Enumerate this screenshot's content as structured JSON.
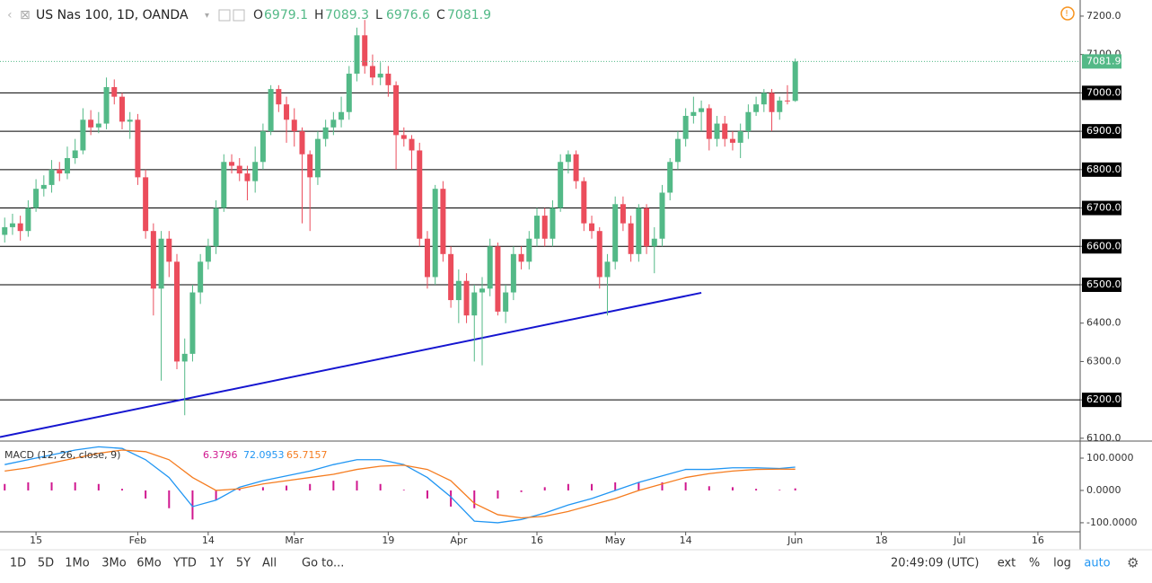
{
  "chart_data": {
    "type": "candlestick",
    "title": "US Nas 100, 1D, OANDA",
    "ohlc_labels": [
      "O",
      "H",
      "L",
      "C"
    ],
    "up_color": "#53b987",
    "down_color": "#eb4d5c",
    "x": [
      -4,
      -3,
      -2,
      -1,
      0,
      1,
      2,
      3,
      4,
      5,
      6,
      7,
      8,
      9,
      10,
      11,
      12,
      13,
      14,
      15,
      16,
      17,
      18,
      19,
      20,
      21,
      22,
      23,
      24,
      25,
      26,
      27,
      28,
      29,
      30,
      31,
      32,
      33,
      34,
      35,
      36,
      37,
      38,
      39,
      40,
      41,
      42,
      43,
      44,
      45,
      46,
      47,
      48,
      49,
      50,
      51,
      52,
      53,
      54,
      55,
      56,
      57,
      58,
      59,
      60,
      61,
      62,
      63,
      64,
      65,
      66,
      67,
      68,
      69,
      70,
      71,
      72,
      73,
      74,
      75,
      76,
      77,
      78,
      79,
      80,
      81,
      82,
      83,
      84,
      85,
      86,
      87,
      88,
      89,
      90,
      91,
      92,
      93,
      94,
      95,
      96,
      97
    ],
    "ohlc": [
      [
        6630,
        6675,
        6610,
        6650
      ],
      [
        6650,
        6685,
        6630,
        6660
      ],
      [
        6660,
        6680,
        6615,
        6640
      ],
      [
        6640,
        6720,
        6625,
        6700
      ],
      [
        6700,
        6775,
        6690,
        6750
      ],
      [
        6750,
        6785,
        6730,
        6760
      ],
      [
        6760,
        6825,
        6740,
        6800
      ],
      [
        6800,
        6820,
        6770,
        6790
      ],
      [
        6790,
        6860,
        6775,
        6830
      ],
      [
        6830,
        6880,
        6815,
        6850
      ],
      [
        6850,
        6960,
        6840,
        6930
      ],
      [
        6930,
        6955,
        6890,
        6910
      ],
      [
        6910,
        6950,
        6895,
        6920
      ],
      [
        6920,
        7040,
        6905,
        7015
      ],
      [
        7015,
        7035,
        6970,
        6990
      ],
      [
        6990,
        7000,
        6905,
        6925
      ],
      [
        6925,
        6950,
        6880,
        6930
      ],
      [
        6930,
        6945,
        6760,
        6780
      ],
      [
        6780,
        6800,
        6620,
        6640
      ],
      [
        6640,
        6660,
        6420,
        6490
      ],
      [
        6490,
        6640,
        6250,
        6620
      ],
      [
        6620,
        6640,
        6520,
        6560
      ],
      [
        6560,
        6580,
        6280,
        6300
      ],
      [
        6300,
        6360,
        6160,
        6320
      ],
      [
        6320,
        6500,
        6300,
        6480
      ],
      [
        6480,
        6580,
        6450,
        6560
      ],
      [
        6560,
        6620,
        6540,
        6600
      ],
      [
        6600,
        6720,
        6580,
        6700
      ],
      [
        6700,
        6840,
        6690,
        6820
      ],
      [
        6820,
        6840,
        6790,
        6810
      ],
      [
        6810,
        6830,
        6770,
        6790
      ],
      [
        6790,
        6810,
        6720,
        6770
      ],
      [
        6770,
        6860,
        6740,
        6820
      ],
      [
        6820,
        6920,
        6800,
        6900
      ],
      [
        6900,
        7020,
        6890,
        7010
      ],
      [
        7010,
        7020,
        6950,
        6970
      ],
      [
        6970,
        6990,
        6870,
        6930
      ],
      [
        6930,
        6960,
        6860,
        6900
      ],
      [
        6900,
        6910,
        6660,
        6840
      ],
      [
        6840,
        6850,
        6640,
        6780
      ],
      [
        6780,
        6900,
        6760,
        6880
      ],
      [
        6880,
        6930,
        6860,
        6910
      ],
      [
        6910,
        6950,
        6890,
        6930
      ],
      [
        6930,
        6990,
        6910,
        6950
      ],
      [
        6950,
        7070,
        6930,
        7050
      ],
      [
        7050,
        7170,
        7030,
        7150
      ],
      [
        7150,
        7190,
        7050,
        7070
      ],
      [
        7070,
        7100,
        7020,
        7040
      ],
      [
        7040,
        7080,
        7020,
        7050
      ],
      [
        7050,
        7070,
        6990,
        7020
      ],
      [
        7020,
        7030,
        6800,
        6890
      ],
      [
        6890,
        6910,
        6860,
        6880
      ],
      [
        6880,
        6890,
        6800,
        6850
      ],
      [
        6850,
        6870,
        6600,
        6620
      ],
      [
        6620,
        6640,
        6490,
        6520
      ],
      [
        6520,
        6760,
        6500,
        6750
      ],
      [
        6750,
        6770,
        6560,
        6580
      ],
      [
        6580,
        6600,
        6440,
        6460
      ],
      [
        6460,
        6540,
        6400,
        6510
      ],
      [
        6510,
        6530,
        6400,
        6420
      ],
      [
        6420,
        6500,
        6300,
        6480
      ],
      [
        6480,
        6520,
        6290,
        6490
      ],
      [
        6490,
        6620,
        6470,
        6600
      ],
      [
        6600,
        6610,
        6420,
        6430
      ],
      [
        6430,
        6500,
        6400,
        6480
      ],
      [
        6480,
        6600,
        6460,
        6580
      ],
      [
        6580,
        6600,
        6540,
        6560
      ],
      [
        6560,
        6640,
        6540,
        6620
      ],
      [
        6620,
        6700,
        6600,
        6680
      ],
      [
        6680,
        6700,
        6600,
        6620
      ],
      [
        6620,
        6720,
        6600,
        6700
      ],
      [
        6700,
        6840,
        6690,
        6820
      ],
      [
        6820,
        6850,
        6790,
        6840
      ],
      [
        6840,
        6850,
        6750,
        6770
      ],
      [
        6770,
        6780,
        6640,
        6660
      ],
      [
        6660,
        6680,
        6620,
        6640
      ],
      [
        6640,
        6650,
        6490,
        6520
      ],
      [
        6520,
        6580,
        6420,
        6560
      ],
      [
        6560,
        6730,
        6540,
        6710
      ],
      [
        6710,
        6730,
        6640,
        6660
      ],
      [
        6660,
        6680,
        6560,
        6580
      ],
      [
        6580,
        6710,
        6560,
        6700
      ],
      [
        6700,
        6710,
        6580,
        6600
      ],
      [
        6600,
        6650,
        6530,
        6620
      ],
      [
        6620,
        6760,
        6600,
        6740
      ],
      [
        6740,
        6830,
        6720,
        6820
      ],
      [
        6820,
        6900,
        6800,
        6880
      ],
      [
        6880,
        6960,
        6860,
        6940
      ],
      [
        6940,
        6990,
        6920,
        6950
      ],
      [
        6950,
        6980,
        6900,
        6960
      ],
      [
        6960,
        6970,
        6850,
        6880
      ],
      [
        6880,
        6940,
        6860,
        6920
      ],
      [
        6920,
        6940,
        6860,
        6880
      ],
      [
        6880,
        6900,
        6850,
        6870
      ],
      [
        6870,
        6920,
        6830,
        6900
      ],
      [
        6900,
        6970,
        6880,
        6950
      ],
      [
        6950,
        6990,
        6940,
        6970
      ],
      [
        6970,
        7010,
        6950,
        7000
      ],
      [
        7000,
        7010,
        6900,
        6950
      ],
      [
        6950,
        6990,
        6930,
        6980
      ],
      [
        6980,
        7020,
        6970,
        6979.1
      ],
      [
        6979.1,
        7089.3,
        6976.6,
        7081.9
      ]
    ],
    "xlim": [
      -4.6,
      133.4
    ],
    "xticks": [
      {
        "value": 0,
        "label": "15"
      },
      {
        "value": 13,
        "label": "Feb"
      },
      {
        "value": 22,
        "label": "14"
      },
      {
        "value": 33,
        "label": "Mar"
      },
      {
        "value": 45,
        "label": "19"
      },
      {
        "value": 54,
        "label": "Apr"
      },
      {
        "value": 64,
        "label": "16"
      },
      {
        "value": 74,
        "label": "May"
      },
      {
        "value": 83,
        "label": "14"
      },
      {
        "value": 97,
        "label": "Jun"
      },
      {
        "value": 108,
        "label": "18"
      },
      {
        "value": 118,
        "label": "Jul"
      },
      {
        "value": 128,
        "label": "16"
      }
    ],
    "ylim": [
      6095,
      7242
    ],
    "yticks": [
      {
        "value": 6100,
        "label": "6100.0"
      },
      {
        "value": 6200,
        "label": "6200.0"
      },
      {
        "value": 6300,
        "label": "6300.0"
      },
      {
        "value": 6400,
        "label": "6400.0"
      },
      {
        "value": 6500,
        "label": "6500.0"
      },
      {
        "value": 6600,
        "label": "6600.0"
      },
      {
        "value": 6700,
        "label": "6700.0"
      },
      {
        "value": 6800,
        "label": "6800.0"
      },
      {
        "value": 6900,
        "label": "6900.0"
      },
      {
        "value": 7000,
        "label": "7000.0"
      },
      {
        "value": 7100,
        "label": "7100.0"
      },
      {
        "value": 7200,
        "label": "7200.0"
      }
    ],
    "grid": false,
    "levels": [
      6200,
      6500,
      6600,
      6700,
      6800,
      6900,
      7000
    ],
    "trendline": {
      "x": [
        -4.6,
        85
      ],
      "y": [
        6103,
        6479
      ],
      "color": "#1515d0"
    },
    "macd": {
      "title": "MACD (12, 26, close, 9)",
      "x": [
        -4,
        -1,
        2,
        5,
        8,
        11,
        14,
        17,
        20,
        23,
        26,
        29,
        32,
        35,
        38,
        41,
        44,
        47,
        50,
        53,
        56,
        59,
        62,
        65,
        68,
        71,
        74,
        77,
        80,
        83,
        86,
        89,
        92,
        95,
        97
      ],
      "histogram": {
        "color": "#d0178f",
        "values": [
          20,
          25,
          25,
          25,
          20,
          5,
          -25,
          -55,
          -90,
          -30,
          5,
          10,
          15,
          20,
          30,
          30,
          20,
          2,
          -25,
          -50,
          -55,
          -25,
          -5,
          10,
          20,
          20,
          25,
          25,
          25,
          25,
          13,
          10,
          5,
          2,
          6.3796
        ]
      },
      "series": [
        {
          "color": "#2196f3",
          "values": [
            80,
            95,
            110,
            125,
            135,
            130,
            95,
            40,
            -50,
            -30,
            10,
            30,
            45,
            60,
            80,
            95,
            95,
            80,
            40,
            -20,
            -95,
            -100,
            -90,
            -70,
            -45,
            -25,
            0,
            25,
            45,
            65,
            65,
            70,
            70,
            68,
            72.0953
          ]
        },
        {
          "color": "#f57c1f",
          "values": [
            60,
            70,
            85,
            100,
            115,
            125,
            120,
            95,
            40,
            0,
            5,
            20,
            30,
            40,
            50,
            65,
            75,
            78,
            65,
            30,
            -40,
            -75,
            -85,
            -80,
            -65,
            -45,
            -25,
            0,
            20,
            40,
            52,
            60,
            65,
            66,
            65.7157
          ]
        }
      ],
      "ylim": [
        -128,
        150
      ],
      "yticks": [
        {
          "value": -100,
          "label": "-100.0000"
        },
        {
          "value": 0,
          "label": "0.0000"
        },
        {
          "value": 100,
          "label": "100.0000"
        }
      ]
    },
    "toolbar": {
      "ranges": [
        "1D",
        "5D",
        "1Mo",
        "3Mo",
        "6Mo",
        "YTD",
        "1Y",
        "5Y",
        "All"
      ],
      "goto": "Go to...",
      "time": "20:49:09 (UTC)",
      "options": [
        "ext",
        "%",
        "log",
        "auto"
      ]
    }
  }
}
